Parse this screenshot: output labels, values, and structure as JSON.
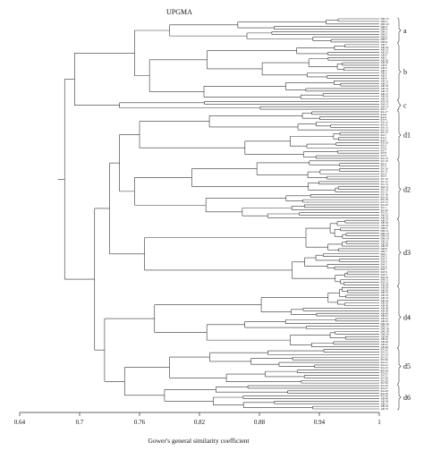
{
  "chart_data": {
    "type": "dendrogram",
    "title": "UPGMA",
    "xlabel": "Gower's general similarity coefficient",
    "xlim": [
      0.64,
      1
    ],
    "ticks": [
      "0.64",
      "0.7",
      "0.76",
      "0.82",
      "0.88",
      "0.94",
      "1"
    ],
    "groups": [
      {
        "label": "a",
        "leaves": 10
      },
      {
        "label": "b",
        "leaves": 22
      },
      {
        "label": "c",
        "leaves": 4
      },
      {
        "label": "d1",
        "leaves": 19
      },
      {
        "label": "d2",
        "leaves": 23
      },
      {
        "label": "d3",
        "leaves": 26
      },
      {
        "label": "d4",
        "leaves": 24
      },
      {
        "label": "d5",
        "leaves": 14
      },
      {
        "label": "d6",
        "leaves": 10
      }
    ],
    "leaf_labels": [
      "DM 15",
      "DM 2",
      "DM 10",
      "DM 3",
      "DM 4",
      "DM 1",
      "DM 5",
      "DM 6",
      "DM 7",
      "DM 8",
      "AB 7",
      "AB 18",
      "AB 13",
      "AB 22",
      "AB 6",
      "AB 1",
      "AB 20",
      "AB 10",
      "AB 8",
      "AB 9",
      "AB 5",
      "AB 3",
      "AB 2",
      "AB 4",
      "AB 12",
      "AB 11",
      "AB 16",
      "AB 14",
      "AB 15",
      "AB 17",
      "AB 19",
      "AB 21",
      "SM 14",
      "SM 15",
      "SM 13",
      "RA 1",
      "RA 17",
      "RA 8",
      "RA 9",
      "RA 4",
      "RA 12",
      "RA 11",
      "RA 13",
      "RA 14",
      "RA 15",
      "RA 7",
      "RA 2",
      "RA 5",
      "RA 16",
      "RA 3",
      "SN 6",
      "SN 7",
      "SN 8",
      "SN 9",
      "RA 10",
      "SN 19",
      "SN 2",
      "SN 3",
      "SN 16",
      "SN 11",
      "SN 4",
      "SN 5",
      "SN 10",
      "SN 12",
      "SN 13",
      "SM 13",
      "SN 14",
      "SN 17",
      "SN 18",
      "RA 19",
      "RA 18",
      "SN 15",
      "RA 20",
      "SN 1",
      "SN 20",
      "SN 21",
      "AB 22",
      "AB 23",
      "AB 37",
      "AB 18",
      "AB 24",
      "DM 9",
      "DM 11",
      "DM 12",
      "DM 13",
      "DM 14",
      "AB 25",
      "AB 26",
      "AB 27",
      "DM 8",
      "DM 7",
      "SM 1",
      "SM 2",
      "SM 3",
      "SM 4",
      "SM 5",
      "SM 6",
      "SM 7",
      "SM 8",
      "SM 9",
      "SM 10",
      "SM 11",
      "SM 12",
      "AB 28",
      "AB 29",
      "AB 30",
      "AB 31",
      "AB 32",
      "AB 33",
      "AB 34",
      "AB 35",
      "AB 36",
      "AB 38",
      "AB 39",
      "AB 40",
      "AB 41",
      "AB 42",
      "AB 43",
      "DM 16",
      "DM 17",
      "DM 18",
      "DM 19",
      "DM 20",
      "AB 44",
      "AB 45",
      "AB 46",
      "AB 47",
      "AB 48",
      "SN 22",
      "SN 23",
      "SN 24",
      "SN 25",
      "SN 26",
      "RA 21",
      "RA 22",
      "RA 23",
      "RA 24",
      "RA 25",
      "SN 27",
      "SN 28",
      "SN 29",
      "SN 30",
      "RA 26",
      "RA 27",
      "RA 28",
      "RA 29",
      "RA 30",
      "AB 49",
      "AB 50",
      "AB 51",
      "AB 52",
      "AB 53"
    ]
  }
}
